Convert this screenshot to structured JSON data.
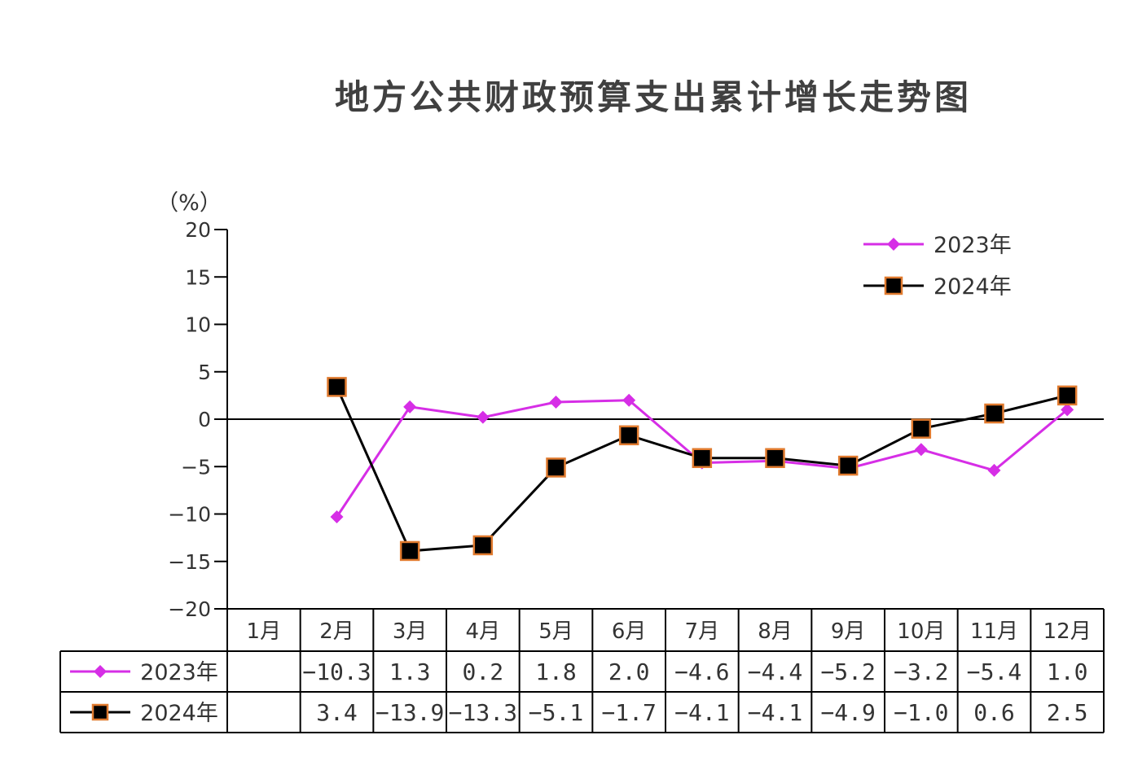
{
  "chart_data": {
    "type": "line",
    "title": "地方公共财政预算支出累计增长走势图",
    "ylabel": "（%）",
    "xlabel": "",
    "ylim": [
      -20,
      20
    ],
    "yticks": [
      20,
      15,
      10,
      5,
      0,
      -5,
      -10,
      -15,
      -20
    ],
    "ytick_labels": [
      "20",
      "15",
      "10",
      "5",
      "0",
      "−5",
      "−10",
      "−15",
      "−20"
    ],
    "categories": [
      "1月",
      "2月",
      "3月",
      "4月",
      "5月",
      "6月",
      "7月",
      "8月",
      "9月",
      "10月",
      "11月",
      "12月"
    ],
    "grid": false,
    "legend_position": "top-right",
    "series": [
      {
        "name": "2023年",
        "color": "#d62ee6",
        "marker": "diamond",
        "values": [
          null,
          -10.3,
          1.3,
          0.2,
          1.8,
          2.0,
          -4.6,
          -4.4,
          -5.2,
          -3.2,
          -5.4,
          1.0
        ],
        "labels": [
          "",
          "−10.3",
          "1.3",
          "0.2",
          "1.8",
          "2.0",
          "−4.6",
          "−4.4",
          "−5.2",
          "−3.2",
          "−5.4",
          "1.0"
        ]
      },
      {
        "name": "2024年",
        "color": "#000000",
        "marker": "square",
        "marker_edge_color": "#e07a2e",
        "values": [
          null,
          3.4,
          -13.9,
          -13.3,
          -5.1,
          -1.7,
          -4.1,
          -4.1,
          -4.9,
          -1.0,
          0.6,
          2.5
        ],
        "labels": [
          "",
          "3.4",
          "−13.9",
          "−13.3",
          "−5.1",
          "−1.7",
          "−4.1",
          "−4.1",
          "−4.9",
          "−1.0",
          "0.6",
          "2.5"
        ]
      }
    ]
  }
}
